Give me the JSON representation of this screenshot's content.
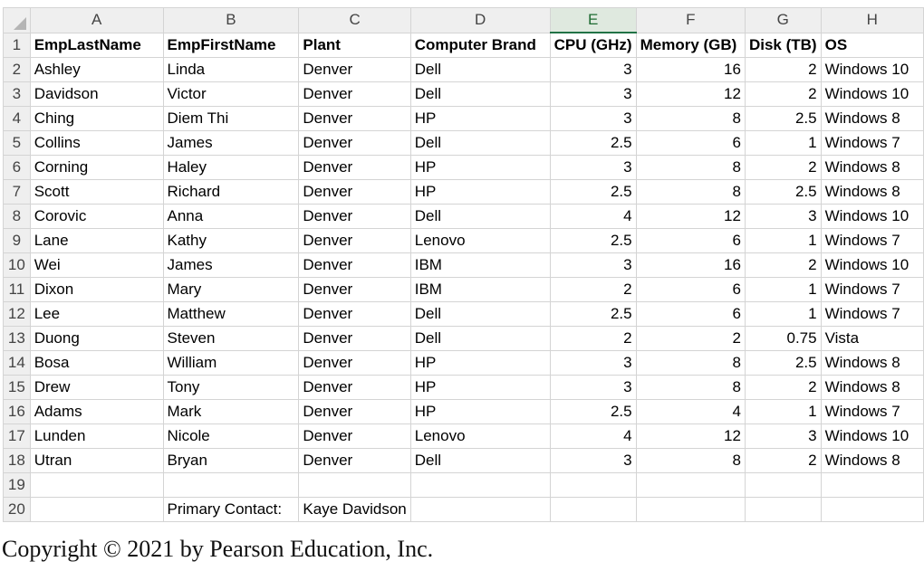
{
  "column_headers": [
    "A",
    "B",
    "C",
    "D",
    "E",
    "F",
    "G",
    "H"
  ],
  "active_column_index": 4,
  "rows": [
    {
      "n": "1",
      "hdr": true,
      "cells": [
        "EmpLastName",
        "EmpFirstName",
        "Plant",
        "Computer Brand",
        "CPU (GHz)",
        "Memory (GB)",
        "Disk (TB)",
        "OS"
      ]
    },
    {
      "n": "2",
      "cells": [
        "Ashley",
        "Linda",
        "Denver",
        "Dell",
        "3",
        "16",
        "2",
        "Windows 10"
      ]
    },
    {
      "n": "3",
      "cells": [
        "Davidson",
        "Victor",
        "Denver",
        "Dell",
        "3",
        "12",
        "2",
        "Windows 10"
      ]
    },
    {
      "n": "4",
      "cells": [
        "Ching",
        "Diem Thi",
        "Denver",
        "HP",
        "3",
        "8",
        "2.5",
        "Windows 8"
      ]
    },
    {
      "n": "5",
      "cells": [
        "Collins",
        "James",
        "Denver",
        "Dell",
        "2.5",
        "6",
        "1",
        "Windows 7"
      ]
    },
    {
      "n": "6",
      "cells": [
        "Corning",
        "Haley",
        "Denver",
        "HP",
        "3",
        "8",
        "2",
        "Windows 8"
      ]
    },
    {
      "n": "7",
      "cells": [
        "Scott",
        "Richard",
        "Denver",
        "HP",
        "2.5",
        "8",
        "2.5",
        "Windows 8"
      ]
    },
    {
      "n": "8",
      "cells": [
        "Corovic",
        "Anna",
        "Denver",
        "Dell",
        "4",
        "12",
        "3",
        "Windows 10"
      ]
    },
    {
      "n": "9",
      "cells": [
        "Lane",
        "Kathy",
        "Denver",
        "Lenovo",
        "2.5",
        "6",
        "1",
        "Windows 7"
      ]
    },
    {
      "n": "10",
      "cells": [
        "Wei",
        "James",
        "Denver",
        "IBM",
        "3",
        "16",
        "2",
        "Windows 10"
      ]
    },
    {
      "n": "11",
      "cells": [
        "Dixon",
        "Mary",
        "Denver",
        "IBM",
        "2",
        "6",
        "1",
        "Windows 7"
      ]
    },
    {
      "n": "12",
      "cells": [
        "Lee",
        "Matthew",
        "Denver",
        "Dell",
        "2.5",
        "6",
        "1",
        "Windows 7"
      ]
    },
    {
      "n": "13",
      "cells": [
        "Duong",
        "Steven",
        "Denver",
        "Dell",
        "2",
        "2",
        "0.75",
        "Vista"
      ]
    },
    {
      "n": "14",
      "cells": [
        "Bosa",
        "William",
        "Denver",
        "HP",
        "3",
        "8",
        "2.5",
        "Windows 8"
      ]
    },
    {
      "n": "15",
      "cells": [
        "Drew",
        "Tony",
        "Denver",
        "HP",
        "3",
        "8",
        "2",
        "Windows 8"
      ]
    },
    {
      "n": "16",
      "cells": [
        "Adams",
        "Mark",
        "Denver",
        "HP",
        "2.5",
        "4",
        "1",
        "Windows 7"
      ]
    },
    {
      "n": "17",
      "cells": [
        "Lunden",
        "Nicole",
        "Denver",
        "Lenovo",
        "4",
        "12",
        "3",
        "Windows 10"
      ]
    },
    {
      "n": "18",
      "cells": [
        "Utran",
        "Bryan",
        "Denver",
        "Dell",
        "3",
        "8",
        "2",
        "Windows 8"
      ]
    },
    {
      "n": "19",
      "cells": [
        "",
        "",
        "",
        "",
        "",
        "",
        "",
        ""
      ]
    },
    {
      "n": "20",
      "cells": [
        "",
        "Primary Contact:",
        "Kaye Davidson",
        "",
        "",
        "",
        "",
        ""
      ]
    }
  ],
  "copyright": "Copyright © 2021 by Pearson Education, Inc."
}
